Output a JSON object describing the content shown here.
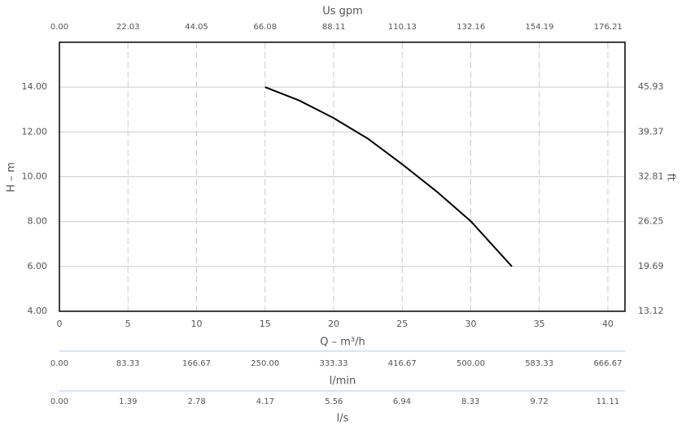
{
  "chart_data": {
    "type": "line",
    "x_label": "Q – m³/h",
    "y_label": "H – m",
    "y2_label": "ft",
    "x": [
      15,
      17.5,
      20,
      22.5,
      25,
      27.5,
      30,
      33
    ],
    "series": [
      {
        "color": "#000000",
        "values": [
          14,
          13.4,
          12.62,
          11.7,
          10.56,
          9.35,
          8.02,
          6
        ]
      }
    ],
    "xlim": [
      0,
      41.25
    ],
    "xticks": [
      0,
      5,
      10,
      15,
      20,
      25,
      30,
      35,
      40
    ],
    "ylim": [
      4,
      16
    ],
    "yticks": [
      {
        "value": 4,
        "label": "4.00"
      },
      {
        "value": 6,
        "label": "6.00"
      },
      {
        "value": 8,
        "label": "8.00"
      },
      {
        "value": 10,
        "label": "10.00"
      },
      {
        "value": 12,
        "label": "12.00"
      },
      {
        "value": 14,
        "label": "14.00"
      }
    ],
    "y2lim": [
      13.12,
      52.49
    ],
    "y2ticks": [
      13.12,
      19.69,
      26.25,
      32.81,
      39.37,
      45.93
    ],
    "grid": true,
    "extra_x_axes": [
      {
        "label": "Us gpm",
        "position": "top",
        "lim": [
          0,
          181.62
        ],
        "ticks": [
          {
            "value": 0,
            "label": "0.00"
          },
          22.03,
          44.05,
          66.08,
          88.11,
          110.13,
          132.16,
          154.19,
          176.21
        ]
      },
      {
        "label": "l/min",
        "position": "bottom",
        "lim": [
          0,
          687.5
        ],
        "ticks": [
          {
            "value": 0,
            "label": "0.00"
          },
          83.33,
          166.67,
          {
            "value": 250,
            "label": "250.00"
          },
          333.33,
          416.67,
          {
            "value": 500,
            "label": "500.00"
          },
          583.33,
          666.67
        ]
      },
      {
        "label": "l/s",
        "position": "bottom",
        "lim": [
          0,
          11.458
        ],
        "ticks": [
          {
            "value": 0,
            "label": "0.00"
          },
          1.39,
          2.78,
          4.17,
          5.56,
          6.94,
          8.33,
          9.72,
          11.11
        ]
      }
    ]
  }
}
